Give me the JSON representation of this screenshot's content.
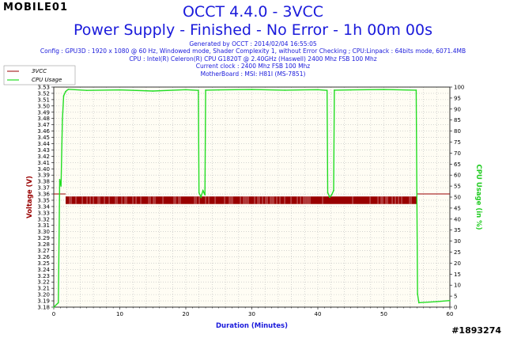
{
  "watermark": {
    "logo": "MOBILE01",
    "id": "#1893274"
  },
  "header": {
    "title": "OCCT 4.4.0 - 3VCC",
    "subtitle": "Power Supply - Finished - No Error - 1h 00m 00s",
    "info": [
      "Generated by OCCT : 2014/02/04 16:55:05",
      "Config : GPU3D : 1920 x 1080 @ 60 Hz, Windowed mode, Shader Complexity 1, without Error Checking ; CPU:Linpack : 64bits mode, 6071.4MB",
      "CPU : Intel(R) Celeron(R) CPU G1820T @ 2.40GHz (Haswell) 2400 Mhz FSB 100 Mhz",
      "Current clock : 2400 Mhz FSB 100 Mhz",
      "MotherBoard : MSI: H81I (MS-7851)"
    ]
  },
  "colors": {
    "voltage": "#990000",
    "cpu": "#22dd22",
    "text": "#1a1adb",
    "grid": "#bbbbbb",
    "bg": "#fffdf4"
  },
  "chart_data": {
    "type": "line",
    "xlabel": "Duration (Minutes)",
    "ylabel": "Voltage (V)",
    "y2label": "CPU Usage (in %)",
    "xlim": [
      0,
      60
    ],
    "ylim": [
      3.18,
      3.53
    ],
    "y2lim": [
      0,
      100
    ],
    "x_ticks": [
      0,
      10,
      20,
      30,
      40,
      50,
      60
    ],
    "y_ticks": [
      3.18,
      3.19,
      3.2,
      3.21,
      3.22,
      3.23,
      3.24,
      3.25,
      3.26,
      3.27,
      3.28,
      3.29,
      3.3,
      3.31,
      3.32,
      3.33,
      3.34,
      3.35,
      3.36,
      3.37,
      3.38,
      3.39,
      3.4,
      3.41,
      3.42,
      3.43,
      3.44,
      3.45,
      3.46,
      3.47,
      3.48,
      3.49,
      3.5,
      3.51,
      3.52,
      3.53
    ],
    "y2_ticks": [
      0,
      5,
      10,
      15,
      20,
      25,
      30,
      35,
      40,
      45,
      50,
      55,
      60,
      65,
      70,
      75,
      80,
      85,
      90,
      95,
      100
    ],
    "grid": true,
    "legend": "top-left",
    "series": [
      {
        "name": "3VCC",
        "axis": "left",
        "color": "#990000",
        "segments": [
          {
            "x": [
              0,
              1.8
            ],
            "y": [
              3.36,
              3.36
            ]
          },
          {
            "x": [
              1.8,
              55
            ],
            "band": [
              3.344,
              3.356
            ]
          },
          {
            "x": [
              55,
              60
            ],
            "y": [
              3.36,
              3.36
            ]
          }
        ]
      },
      {
        "name": "CPU Usage",
        "axis": "right",
        "color": "#22dd22",
        "x": [
          0,
          0.7,
          0.9,
          1.1,
          1.3,
          1.5,
          1.8,
          2.2,
          5,
          10,
          15,
          20,
          21.9,
          22.0,
          22.3,
          22.6,
          22.9,
          23.0,
          25,
          30,
          35,
          40,
          41.4,
          41.5,
          41.8,
          42.1,
          42.4,
          42.5,
          45,
          50,
          54.9,
          55.1,
          55.3,
          58,
          60
        ],
        "y": [
          0,
          2,
          58,
          55,
          85,
          96,
          98,
          99,
          98.5,
          98.7,
          98.2,
          98.8,
          98.5,
          52,
          50,
          53,
          51,
          98.6,
          98.7,
          98.9,
          98.6,
          98.8,
          98.5,
          52,
          50,
          51,
          53,
          98.6,
          98.7,
          98.9,
          98.6,
          6,
          2,
          2.5,
          3
        ]
      }
    ]
  }
}
